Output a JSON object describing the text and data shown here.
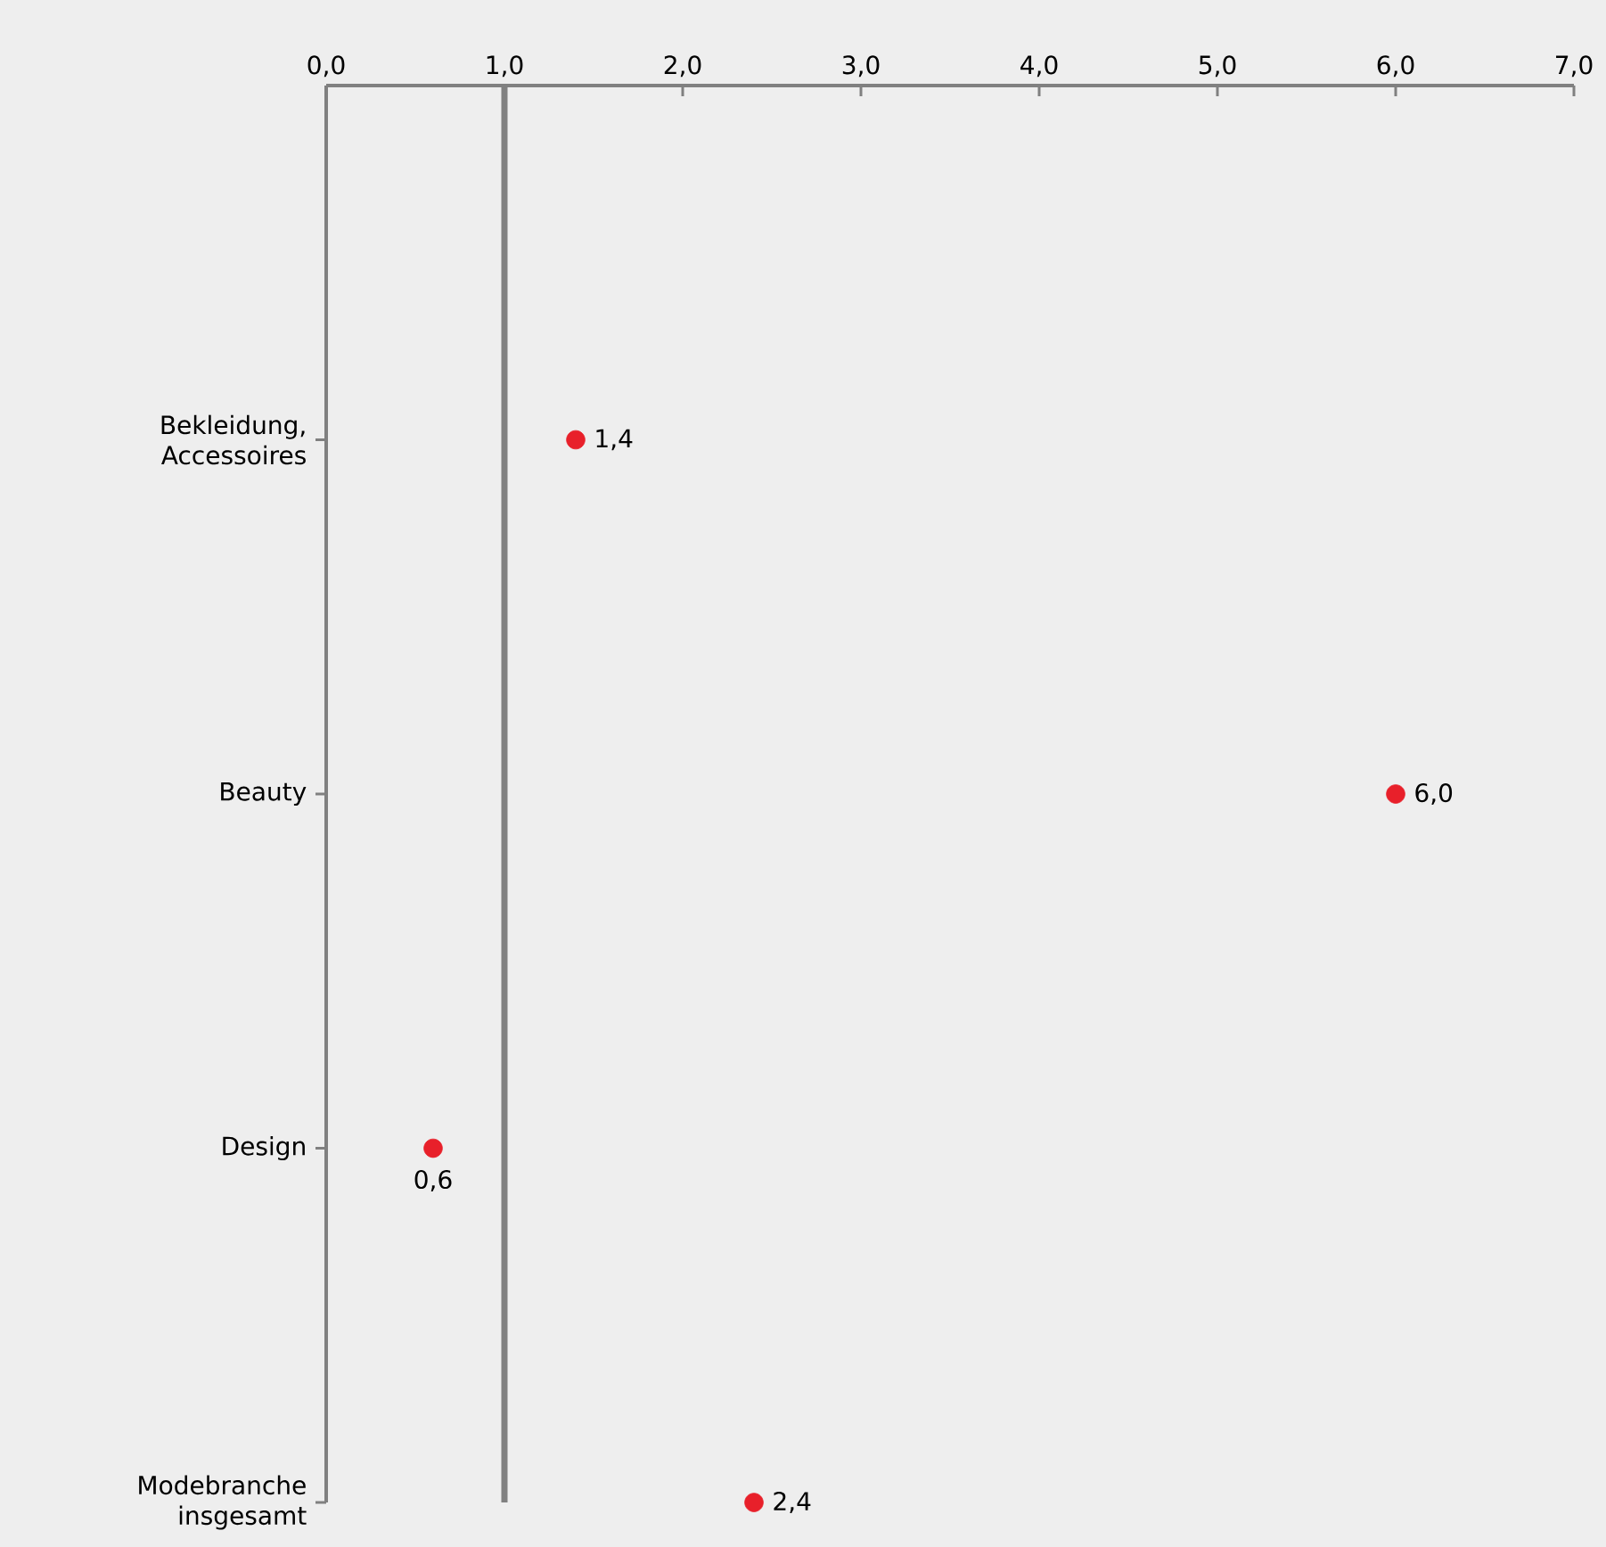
{
  "chart_data": {
    "type": "scatter",
    "orientation": "horizontal",
    "categories": [
      "Bekleidung, Accessoires",
      "Beauty",
      "Design",
      "Modebranche insgesamt"
    ],
    "values": [
      1.4,
      6.0,
      0.6,
      2.4
    ],
    "value_labels": [
      "1,4",
      "6,0",
      "0,6",
      "2,4"
    ],
    "color": "#e8202a",
    "xlim": [
      0,
      7
    ],
    "xticks": [
      {
        "value": 0,
        "label": "0,0"
      },
      {
        "value": 1,
        "label": "1,0"
      },
      {
        "value": 2,
        "label": "2,0"
      },
      {
        "value": 3,
        "label": "3,0"
      },
      {
        "value": 4,
        "label": "4,0"
      },
      {
        "value": 5,
        "label": "5,0"
      },
      {
        "value": 6,
        "label": "6,0"
      },
      {
        "value": 7,
        "label": "7,0"
      }
    ],
    "ref_lines": [
      {
        "axis": "x",
        "value": 1,
        "color": "#808080"
      }
    ]
  }
}
